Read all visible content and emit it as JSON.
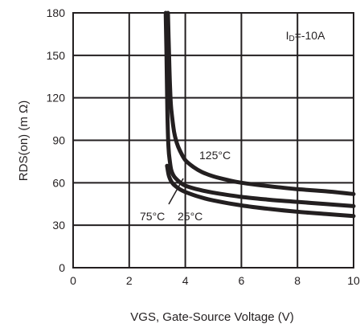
{
  "chart_data": {
    "type": "line",
    "title": "",
    "annotation": "ID=-10A",
    "xlabel": "VGS, Gate-Source Voltage (V)",
    "ylabel": "RDS(on) (m Ω)",
    "xlim": [
      0,
      10
    ],
    "ylim": [
      0,
      180
    ],
    "xticks": [
      0,
      2,
      4,
      6,
      8,
      10
    ],
    "yticks": [
      0,
      30,
      60,
      90,
      120,
      150,
      180
    ],
    "grid": true,
    "series": [
      {
        "name": "125°C",
        "x": [
          3.38,
          3.42,
          3.46,
          3.5,
          3.6,
          3.7,
          3.8,
          4.0,
          4.3,
          4.6,
          5.0,
          5.5,
          6.0,
          7.0,
          8.0,
          9.0,
          10.0
        ],
        "y": [
          180,
          150,
          125,
          112,
          96,
          88,
          83,
          76,
          71,
          67.5,
          64.5,
          62,
          60,
          57.5,
          55.5,
          54,
          52
        ]
      },
      {
        "name": "25°C",
        "x": [
          3.3,
          3.33,
          3.36,
          3.4,
          3.45,
          3.5,
          3.6,
          3.8,
          4.0,
          4.5,
          5.0,
          6.0,
          7.0,
          8.0,
          9.0,
          10.0
        ],
        "y": [
          180,
          150,
          110,
          85,
          75,
          69,
          64.5,
          60.5,
          58,
          55,
          53,
          50,
          48,
          46.5,
          45,
          43.5
        ]
      },
      {
        "name": "75°C",
        "x": [
          3.35,
          3.4,
          3.45,
          3.5,
          3.6,
          3.8,
          4.0,
          4.5,
          5.0,
          6.0,
          7.0,
          8.0,
          9.0,
          10.0
        ],
        "y": [
          72,
          66,
          63,
          61,
          58.5,
          55.5,
          53.5,
          50,
          47.5,
          44,
          41.5,
          39.5,
          38,
          36.5
        ]
      }
    ]
  }
}
